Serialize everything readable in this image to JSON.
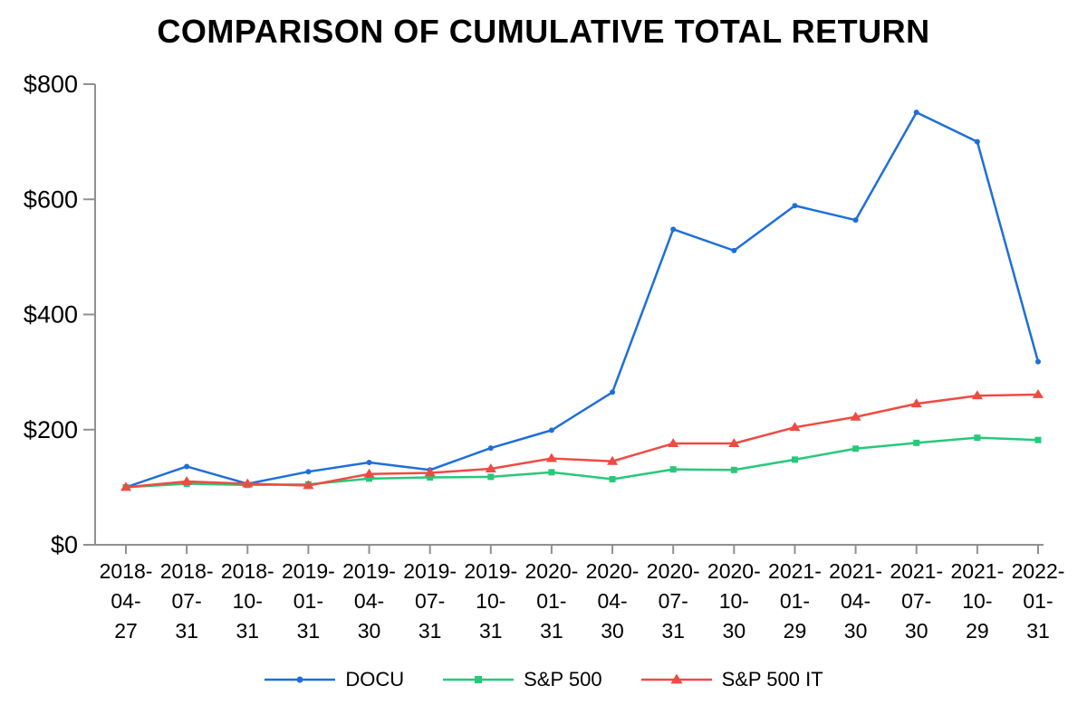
{
  "chart_data": {
    "type": "line",
    "title": "COMPARISON OF CUMULATIVE TOTAL RETURN",
    "categories": [
      "2018-04-27",
      "2018-07-31",
      "2018-10-31",
      "2019-01-31",
      "2019-04-30",
      "2019-07-31",
      "2019-10-31",
      "2020-01-31",
      "2020-04-30",
      "2020-07-31",
      "2020-10-30",
      "2021-01-29",
      "2021-04-30",
      "2021-07-30",
      "2021-10-29",
      "2022-01-31"
    ],
    "series": [
      {
        "name": "DOCU",
        "color": "#1e6fd8",
        "marker": "circle",
        "values": [
          100,
          136,
          106,
          127,
          143,
          130,
          168,
          199,
          265,
          548,
          511,
          589,
          564,
          751,
          700,
          318
        ]
      },
      {
        "name": "S&P 500",
        "color": "#27c87a",
        "marker": "square",
        "values": [
          100,
          106,
          104,
          105,
          115,
          117,
          118,
          126,
          114,
          131,
          130,
          148,
          167,
          177,
          186,
          182
        ]
      },
      {
        "name": "S&P 500 IT",
        "color": "#ee4b43",
        "marker": "triangle",
        "values": [
          100,
          110,
          106,
          103,
          123,
          125,
          132,
          150,
          145,
          176,
          176,
          204,
          222,
          245,
          259,
          261
        ]
      }
    ],
    "y_ticks": [
      {
        "value": 0,
        "label": "$0"
      },
      {
        "value": 200,
        "label": "$200"
      },
      {
        "value": 400,
        "label": "$400"
      },
      {
        "value": 600,
        "label": "$600"
      },
      {
        "value": 800,
        "label": "$800"
      }
    ],
    "ylim": [
      0,
      800
    ],
    "grid": false,
    "legend_position": "bottom",
    "axis_color": "#909090",
    "text_color": "#000000"
  }
}
